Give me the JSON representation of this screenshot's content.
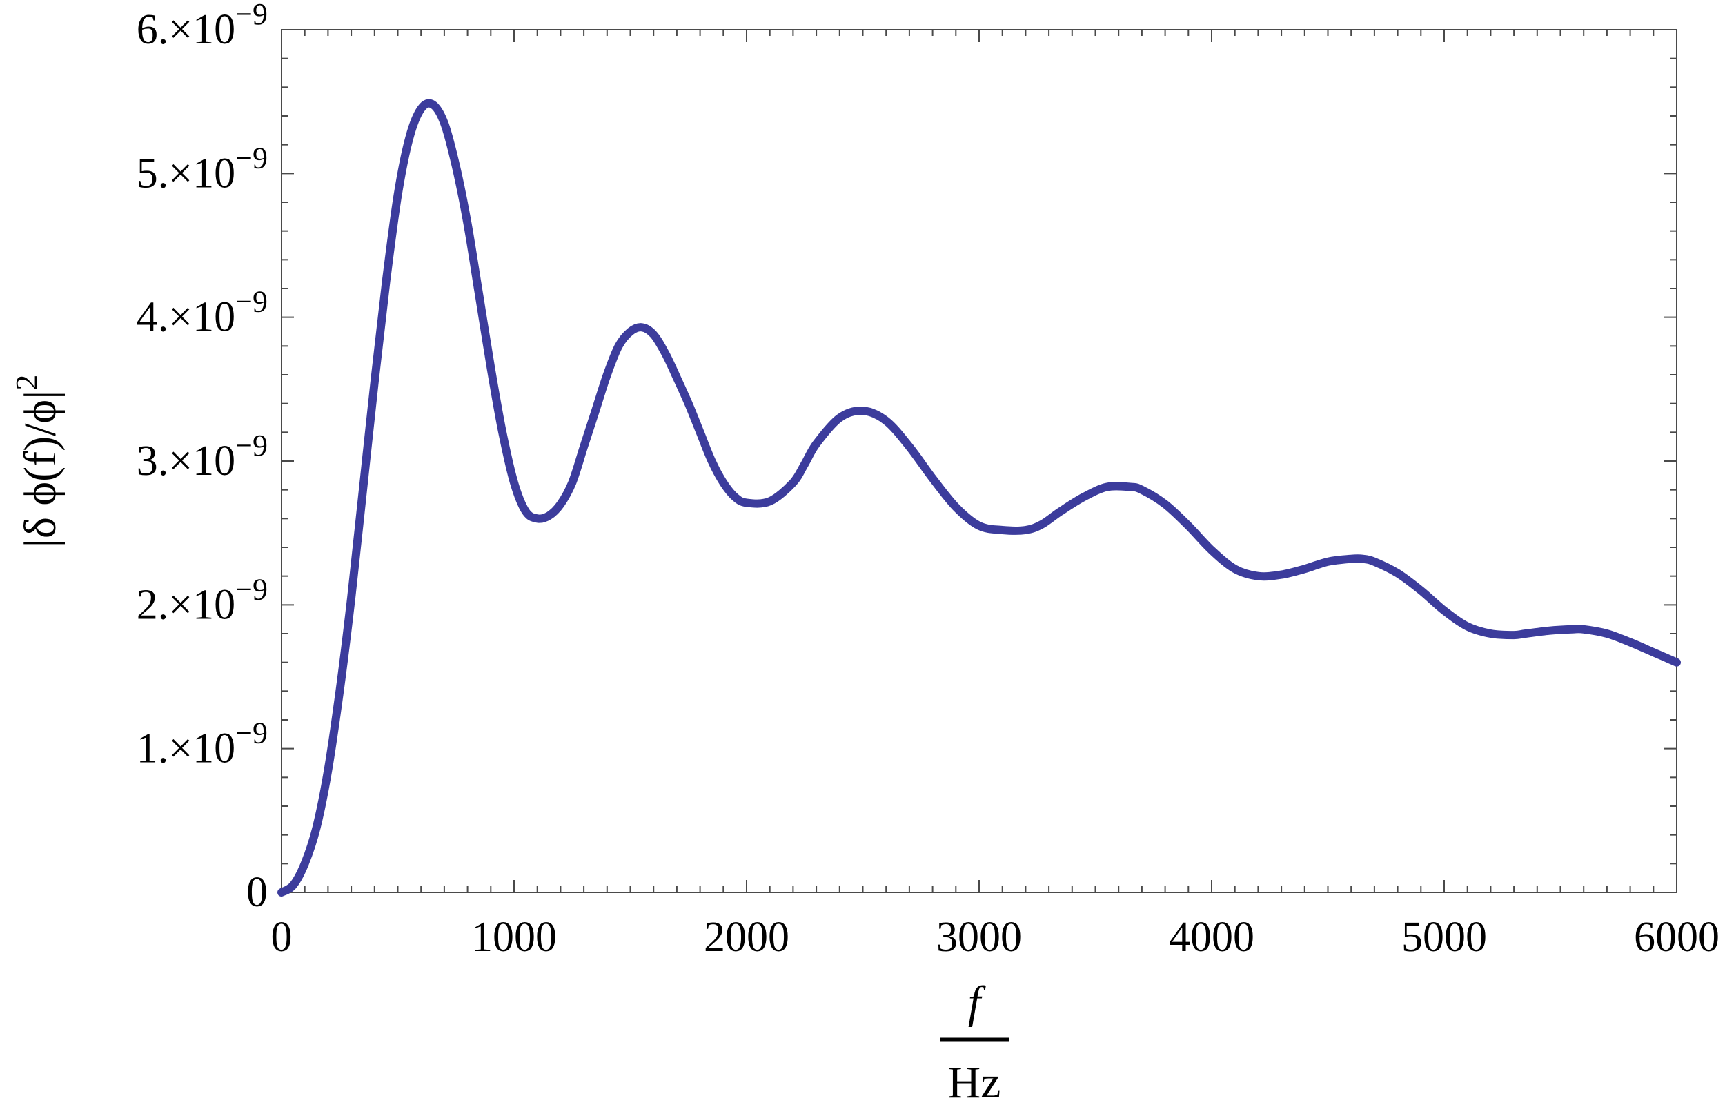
{
  "chart_data": {
    "type": "line",
    "series": [
      {
        "color": "#3c3c9c",
        "x": [
          0,
          50,
          100,
          150,
          200,
          250,
          300,
          350,
          400,
          450,
          500,
          550,
          600,
          650,
          700,
          750,
          800,
          850,
          900,
          950,
          1000,
          1050,
          1100,
          1150,
          1200,
          1250,
          1300,
          1350,
          1400,
          1450,
          1500,
          1550,
          1600,
          1650,
          1700,
          1750,
          1800,
          1850,
          1900,
          1950,
          2000,
          2100,
          2200,
          2250,
          2300,
          2400,
          2500,
          2600,
          2700,
          2800,
          2900,
          3000,
          3100,
          3200,
          3270,
          3350,
          3450,
          3550,
          3650,
          3700,
          3800,
          3900,
          4000,
          4100,
          4200,
          4300,
          4400,
          4500,
          4600,
          4650,
          4700,
          4800,
          4900,
          5000,
          5100,
          5200,
          5300,
          5350,
          5450,
          5550,
          5600,
          5700,
          5800,
          5900,
          6000
        ],
        "y": [
          0.0,
          5e-11,
          2e-10,
          4.5e-10,
          8.5e-10,
          1.4e-09,
          2.05e-09,
          2.8e-09,
          3.55e-09,
          4.25e-09,
          4.85e-09,
          5.25e-09,
          5.45e-09,
          5.48e-09,
          5.35e-09,
          5.05e-09,
          4.65e-09,
          4.15e-09,
          3.65e-09,
          3.2e-09,
          2.85e-09,
          2.65e-09,
          2.6e-09,
          2.62e-09,
          2.7e-09,
          2.85e-09,
          3.1e-09,
          3.35e-09,
          3.6e-09,
          3.8e-09,
          3.9e-09,
          3.93e-09,
          3.88e-09,
          3.75e-09,
          3.58e-09,
          3.4e-09,
          3.2e-09,
          3e-09,
          2.85e-09,
          2.75e-09,
          2.71e-09,
          2.72e-09,
          2.85e-09,
          2.98e-09,
          3.12e-09,
          3.3e-09,
          3.35e-09,
          3.28e-09,
          3.1e-09,
          2.88e-09,
          2.68e-09,
          2.55e-09,
          2.52e-09,
          2.52e-09,
          2.56e-09,
          2.65e-09,
          2.75e-09,
          2.82e-09,
          2.82e-09,
          2.8e-09,
          2.7e-09,
          2.55e-09,
          2.38e-09,
          2.25e-09,
          2.2e-09,
          2.21e-09,
          2.25e-09,
          2.3e-09,
          2.32e-09,
          2.32e-09,
          2.3e-09,
          2.22e-09,
          2.1e-09,
          1.96e-09,
          1.85e-09,
          1.8e-09,
          1.79e-09,
          1.8e-09,
          1.82e-09,
          1.83e-09,
          1.83e-09,
          1.8e-09,
          1.74e-09,
          1.67e-09,
          1.6e-09
        ]
      }
    ],
    "xlim": [
      0,
      6000
    ],
    "ylim": [
      0,
      6e-09
    ],
    "x_ticks": [
      "0",
      "1000",
      "2000",
      "3000",
      "4000",
      "5000",
      "6000"
    ],
    "y_ticks": [
      {
        "mantissa": "0",
        "exponent": ""
      },
      {
        "mantissa": "1.×10",
        "exponent": "−9"
      },
      {
        "mantissa": "2.×10",
        "exponent": "−9"
      },
      {
        "mantissa": "3.×10",
        "exponent": "−9"
      },
      {
        "mantissa": "4.×10",
        "exponent": "−9"
      },
      {
        "mantissa": "5.×10",
        "exponent": "−9"
      },
      {
        "mantissa": "6.×10",
        "exponent": "−9"
      }
    ],
    "xlabel_numerator": "f",
    "xlabel_denominator": "Hz",
    "ylabel": "|δ ϕ(f)/ϕ|",
    "ylabel_superscript": "2",
    "grid": false
  }
}
